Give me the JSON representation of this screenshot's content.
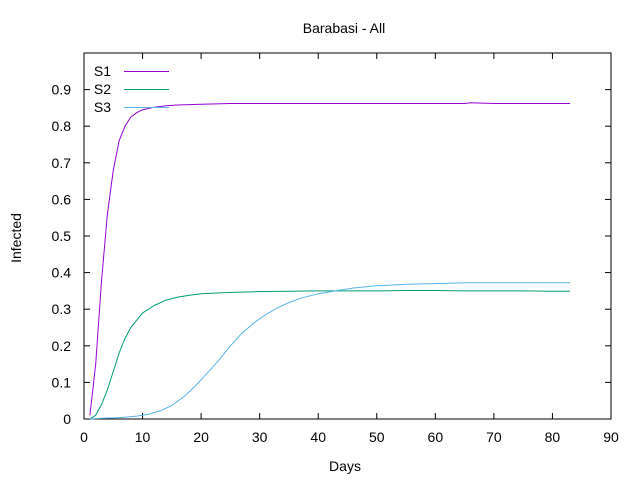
{
  "chart_data": {
    "type": "line",
    "title": "Barabasi - All",
    "xlabel": "Days",
    "ylabel": "Infected",
    "xlim": [
      0,
      90
    ],
    "ylim": [
      0,
      1.0
    ],
    "x_ticks": [
      0,
      10,
      20,
      30,
      40,
      50,
      60,
      70,
      80,
      90
    ],
    "y_ticks": [
      0,
      0.1,
      0.2,
      0.3,
      0.4,
      0.5,
      0.6,
      0.7,
      0.8,
      0.9
    ],
    "y_tick_labels": [
      "0",
      "0.1",
      "0.2",
      "0.3",
      "0.4",
      "0.5",
      "0.6",
      "0.7",
      "0.8",
      "0.9"
    ],
    "grid": false,
    "legend_position": "top-left",
    "series": [
      {
        "name": "S1",
        "color": "#9400d3",
        "x": [
          1,
          2,
          3,
          4,
          5,
          6,
          7,
          8,
          9,
          10,
          12,
          14,
          16,
          18,
          20,
          25,
          30,
          35,
          40,
          45,
          50,
          55,
          60,
          65,
          66,
          70,
          75,
          80,
          83
        ],
        "y": [
          0.01,
          0.15,
          0.38,
          0.56,
          0.68,
          0.76,
          0.8,
          0.825,
          0.837,
          0.845,
          0.852,
          0.856,
          0.858,
          0.859,
          0.86,
          0.862,
          0.862,
          0.862,
          0.862,
          0.862,
          0.862,
          0.862,
          0.862,
          0.862,
          0.864,
          0.862,
          0.862,
          0.862,
          0.862
        ]
      },
      {
        "name": "S2",
        "color": "#009e73",
        "x": [
          1,
          2,
          3,
          4,
          5,
          6,
          7,
          8,
          9,
          10,
          12,
          14,
          16,
          18,
          20,
          25,
          30,
          35,
          40,
          45,
          50,
          55,
          60,
          65,
          70,
          75,
          80,
          83
        ],
        "y": [
          0.0,
          0.01,
          0.04,
          0.08,
          0.13,
          0.18,
          0.22,
          0.25,
          0.27,
          0.29,
          0.31,
          0.325,
          0.333,
          0.338,
          0.342,
          0.346,
          0.348,
          0.349,
          0.35,
          0.35,
          0.35,
          0.351,
          0.351,
          0.35,
          0.35,
          0.35,
          0.349,
          0.349
        ]
      },
      {
        "name": "S3",
        "color": "#56b4e9",
        "x": [
          1,
          3,
          5,
          7,
          9,
          11,
          13,
          15,
          17,
          19,
          21,
          23,
          25,
          27,
          29,
          31,
          33,
          35,
          37,
          40,
          43,
          46,
          50,
          55,
          60,
          65,
          70,
          75,
          80,
          83
        ],
        "y": [
          0.0,
          0.002,
          0.003,
          0.005,
          0.008,
          0.013,
          0.022,
          0.037,
          0.06,
          0.09,
          0.125,
          0.16,
          0.2,
          0.235,
          0.262,
          0.285,
          0.303,
          0.318,
          0.33,
          0.342,
          0.35,
          0.358,
          0.364,
          0.368,
          0.37,
          0.372,
          0.372,
          0.372,
          0.372,
          0.372
        ]
      }
    ]
  }
}
